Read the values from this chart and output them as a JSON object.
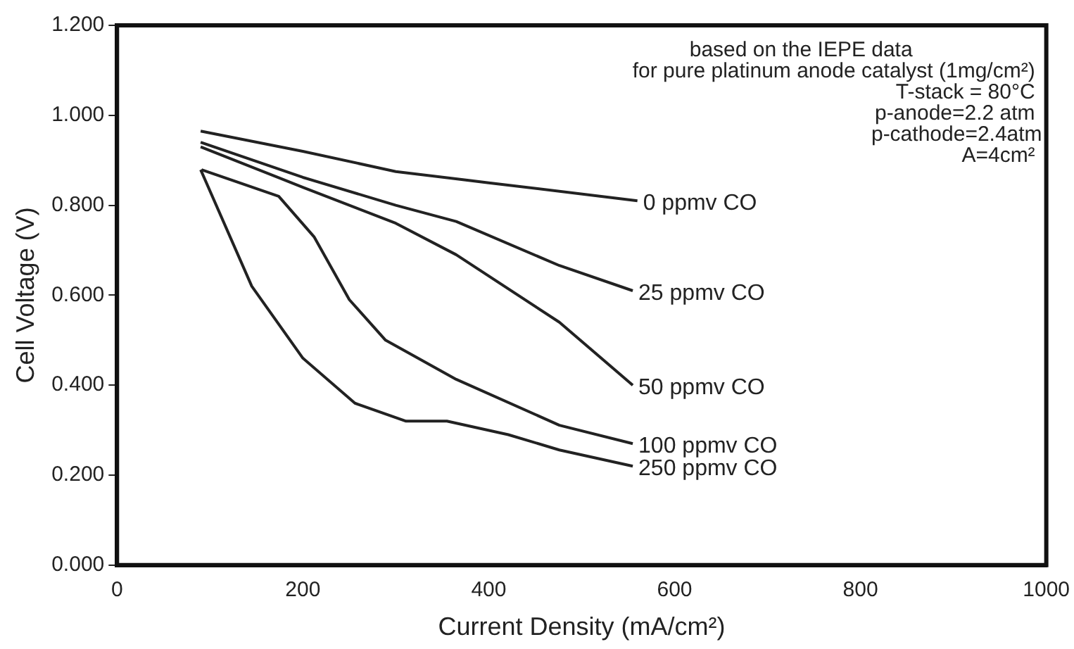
{
  "chart_data": {
    "type": "line",
    "xlabel": "Current Density (mA/cm²)",
    "ylabel": "Cell Voltage (V)",
    "xlim": [
      0,
      1000
    ],
    "xticks": [
      0,
      200,
      400,
      600,
      800,
      1000
    ],
    "ylim": [
      0,
      1.2
    ],
    "yticks": [
      {
        "value": 0,
        "label": "0.000"
      },
      {
        "value": 0.2,
        "label": "0.200"
      },
      {
        "value": 0.4,
        "label": "0.400"
      },
      {
        "value": 0.6,
        "label": "0.600"
      },
      {
        "value": 0.8,
        "label": "0.800"
      },
      {
        "value": 1,
        "label": "1.000"
      },
      {
        "value": 1.2,
        "label": "1.200"
      }
    ],
    "grid": false,
    "legend": false,
    "marker": "none",
    "line_style": "solid",
    "annotations": [
      "based on the IEPE data",
      "for pure platinum anode catalyst (1mg/cm²)",
      "T-stack = 80°C",
      "p-anode=2.2 atm",
      "p-cathode=2.4atm",
      "A=4cm²"
    ],
    "series": [
      {
        "name": "0 ppmv CO",
        "color": "#222222",
        "x": [
          90,
          200,
          300,
          400,
          560
        ],
        "values": [
          0.965,
          0.92,
          0.875,
          0.85,
          0.81
        ]
      },
      {
        "name": "25 ppmv CO",
        "color": "#222222",
        "x": [
          90,
          200,
          300,
          365,
          476,
          555
        ],
        "values": [
          0.94,
          0.862,
          0.8,
          0.764,
          0.666,
          0.61
        ]
      },
      {
        "name": "50 ppmv CO",
        "color": "#222222",
        "x": [
          90,
          200,
          300,
          365,
          476,
          555
        ],
        "values": [
          0.93,
          0.84,
          0.76,
          0.69,
          0.54,
          0.4
        ]
      },
      {
        "name": "100 ppmv CO",
        "color": "#222222",
        "x": [
          91,
          174,
          212,
          250,
          289,
          365,
          476,
          555
        ],
        "values": [
          0.879,
          0.82,
          0.73,
          0.59,
          0.5,
          0.413,
          0.311,
          0.27
        ]
      },
      {
        "name": "250 ppmv CO",
        "color": "#222222",
        "x": [
          90,
          145,
          200,
          256,
          311,
          355,
          421,
          476,
          555
        ],
        "values": [
          0.879,
          0.62,
          0.46,
          0.36,
          0.32,
          0.32,
          0.29,
          0.256,
          0.22
        ]
      }
    ]
  }
}
